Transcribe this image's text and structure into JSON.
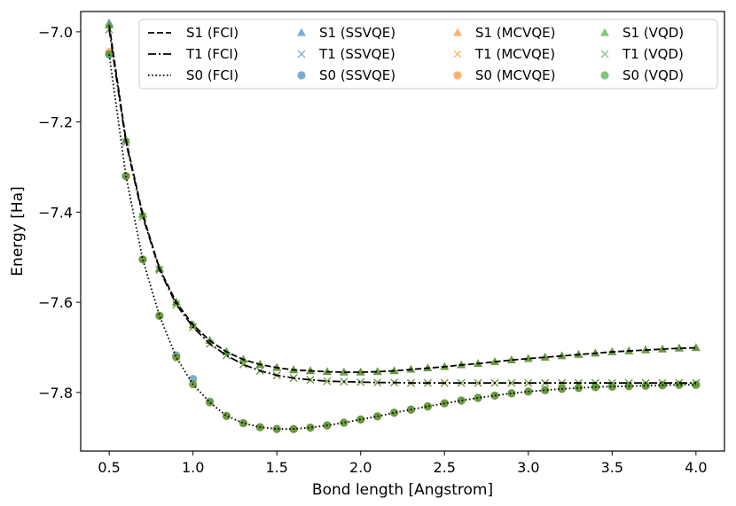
{
  "chart_data": {
    "type": "line",
    "title": "",
    "xlabel": "Bond length [Angstrom]",
    "ylabel": "Energy [Ha]",
    "xlim": [
      0.33,
      4.17
    ],
    "ylim": [
      -7.93,
      -6.955
    ],
    "x_ticks": [
      0.5,
      1.0,
      1.5,
      2.0,
      2.5,
      3.0,
      3.5,
      4.0
    ],
    "x_tick_labels": [
      "0.5",
      "1.0",
      "1.5",
      "2.0",
      "2.5",
      "3.0",
      "3.5",
      "4.0"
    ],
    "y_ticks": [
      -7.0,
      -7.2,
      -7.4,
      -7.6,
      -7.8
    ],
    "y_tick_labels": [
      "−7.0",
      "−7.2",
      "−7.4",
      "−7.6",
      "−7.8"
    ],
    "grid": false,
    "legend_position": "top-right",
    "colors": {
      "ssvqe": "#1f77b4",
      "mcvqe": "#ff7f0e",
      "vqd": "#2ca02c",
      "fci": "#000000"
    },
    "x": [
      0.5,
      0.6,
      0.7,
      0.8,
      0.9,
      1.0,
      1.1,
      1.2,
      1.3,
      1.4,
      1.5,
      1.6,
      1.7,
      1.8,
      1.9,
      2.0,
      2.1,
      2.2,
      2.3,
      2.4,
      2.5,
      2.6,
      2.7,
      2.8,
      2.9,
      3.0,
      3.1,
      3.2,
      3.3,
      3.4,
      3.5,
      3.6,
      3.7,
      3.8,
      3.9,
      4.0
    ],
    "series": [
      {
        "name": "S1 (FCI)",
        "kind": "line",
        "dash": "dashed",
        "color": "#000000",
        "values": [
          -6.985,
          -7.24,
          -7.405,
          -7.525,
          -7.6,
          -7.65,
          -7.685,
          -7.71,
          -7.727,
          -7.738,
          -7.745,
          -7.75,
          -7.752,
          -7.754,
          -7.755,
          -7.755,
          -7.754,
          -7.752,
          -7.749,
          -7.746,
          -7.743,
          -7.739,
          -7.736,
          -7.732,
          -7.728,
          -7.725,
          -7.722,
          -7.719,
          -7.716,
          -7.713,
          -7.71,
          -7.708,
          -7.706,
          -7.704,
          -7.702,
          -7.701
        ]
      },
      {
        "name": "T1 (FCI)",
        "kind": "line",
        "dash": "dashdot",
        "color": "#000000",
        "values": [
          -6.995,
          -7.245,
          -7.41,
          -7.528,
          -7.605,
          -7.655,
          -7.692,
          -7.718,
          -7.738,
          -7.752,
          -7.762,
          -7.768,
          -7.772,
          -7.775,
          -7.776,
          -7.777,
          -7.778,
          -7.778,
          -7.779,
          -7.779,
          -7.779,
          -7.779,
          -7.779,
          -7.779,
          -7.779,
          -7.779,
          -7.779,
          -7.779,
          -7.779,
          -7.779,
          -7.779,
          -7.779,
          -7.779,
          -7.779,
          -7.779,
          -7.779
        ]
      },
      {
        "name": "S0 (FCI)",
        "kind": "line",
        "dash": "dotted",
        "color": "#000000",
        "values": [
          -7.05,
          -7.32,
          -7.505,
          -7.63,
          -7.722,
          -7.782,
          -7.822,
          -7.852,
          -7.868,
          -7.877,
          -7.881,
          -7.881,
          -7.878,
          -7.873,
          -7.867,
          -7.86,
          -7.853,
          -7.845,
          -7.838,
          -7.831,
          -7.824,
          -7.818,
          -7.812,
          -7.807,
          -7.802,
          -7.798,
          -7.795,
          -7.792,
          -7.79,
          -7.788,
          -7.787,
          -7.786,
          -7.785,
          -7.784,
          -7.783,
          -7.783
        ]
      },
      {
        "name": "S1 (SSVQE)",
        "kind": "marker",
        "marker": "triangle",
        "color": "#1f77b4",
        "values": [
          -6.98,
          -7.24,
          -7.405,
          -7.525,
          -7.6,
          -7.65,
          -7.685,
          -7.71,
          -7.727,
          -7.738,
          -7.745,
          -7.75,
          -7.752,
          -7.754,
          -7.755,
          -7.755,
          -7.754,
          -7.752,
          -7.749,
          -7.746,
          -7.743,
          -7.739,
          -7.736,
          -7.732,
          -7.728,
          -7.725,
          -7.722,
          -7.719,
          -7.716,
          -7.713,
          -7.71,
          -7.708,
          -7.706,
          -7.704,
          -7.702,
          -7.701
        ]
      },
      {
        "name": "T1 (SSVQE)",
        "kind": "marker",
        "marker": "x",
        "color": "#1f77b4",
        "values": [
          -6.995,
          -7.245,
          -7.41,
          -7.528,
          -7.605,
          -7.655,
          -7.692,
          -7.718,
          -7.738,
          -7.752,
          -7.762,
          -7.768,
          -7.772,
          -7.775,
          -7.776,
          -7.777,
          -7.778,
          -7.778,
          -7.779,
          -7.779,
          -7.779,
          -7.779,
          -7.779,
          -7.779,
          -7.779,
          -7.779,
          -7.779,
          -7.779,
          -7.779,
          -7.779,
          -7.779,
          -7.779,
          -7.779,
          -7.779,
          -7.779,
          -7.779
        ]
      },
      {
        "name": "S0 (SSVQE)",
        "kind": "marker",
        "marker": "circle",
        "color": "#1f77b4",
        "values": [
          -7.05,
          -7.32,
          -7.505,
          -7.63,
          -7.718,
          -7.77,
          -7.82,
          -7.852,
          -7.868,
          -7.877,
          -7.881,
          -7.881,
          -7.878,
          -7.873,
          -7.867,
          -7.86,
          -7.853,
          -7.845,
          -7.838,
          -7.831,
          -7.824,
          -7.818,
          -7.812,
          -7.807,
          -7.802,
          -7.798,
          -7.795,
          -7.792,
          -7.79,
          -7.788,
          -7.787,
          -7.786,
          -7.785,
          -7.784,
          -7.783,
          -7.783
        ]
      },
      {
        "name": "S1 (MCVQE)",
        "kind": "marker",
        "marker": "triangle",
        "color": "#ff7f0e",
        "values": [
          -6.985,
          -7.24,
          -7.405,
          -7.525,
          -7.6,
          -7.65,
          -7.685,
          -7.71,
          -7.727,
          -7.738,
          -7.745,
          -7.75,
          -7.752,
          -7.754,
          -7.755,
          -7.755,
          -7.754,
          -7.752,
          -7.749,
          -7.746,
          -7.743,
          -7.739,
          -7.736,
          -7.732,
          -7.728,
          -7.725,
          -7.722,
          -7.719,
          -7.716,
          -7.713,
          -7.71,
          -7.708,
          -7.706,
          -7.704,
          -7.702,
          -7.701
        ]
      },
      {
        "name": "T1 (MCVQE)",
        "kind": "marker",
        "marker": "x",
        "color": "#ff7f0e",
        "values": [
          -6.995,
          -7.245,
          -7.41,
          -7.528,
          -7.605,
          -7.655,
          -7.692,
          -7.718,
          -7.738,
          -7.752,
          -7.762,
          -7.768,
          -7.772,
          -7.775,
          -7.776,
          -7.777,
          -7.778,
          -7.778,
          -7.779,
          -7.779,
          -7.779,
          -7.779,
          -7.779,
          -7.779,
          -7.779,
          -7.779,
          -7.779,
          -7.779,
          -7.779,
          -7.779,
          -7.779,
          -7.779,
          -7.779,
          -7.779,
          -7.779,
          -7.779
        ]
      },
      {
        "name": "S0 (MCVQE)",
        "kind": "marker",
        "marker": "circle",
        "color": "#ff7f0e",
        "values": [
          -7.045,
          -7.32,
          -7.505,
          -7.63,
          -7.722,
          -7.782,
          -7.822,
          -7.852,
          -7.868,
          -7.877,
          -7.881,
          -7.881,
          -7.878,
          -7.873,
          -7.867,
          -7.86,
          -7.853,
          -7.845,
          -7.838,
          -7.831,
          -7.824,
          -7.818,
          -7.812,
          -7.807,
          -7.802,
          -7.798,
          -7.795,
          -7.792,
          -7.79,
          -7.788,
          -7.787,
          -7.786,
          -7.785,
          -7.784,
          -7.783,
          -7.783
        ]
      },
      {
        "name": "S1 (VQD)",
        "kind": "marker",
        "marker": "triangle",
        "color": "#2ca02c",
        "values": [
          -6.985,
          -7.24,
          -7.405,
          -7.525,
          -7.6,
          -7.65,
          -7.685,
          -7.71,
          -7.727,
          -7.738,
          -7.745,
          -7.75,
          -7.752,
          -7.754,
          -7.755,
          -7.755,
          -7.754,
          -7.752,
          -7.749,
          -7.746,
          -7.743,
          -7.739,
          -7.736,
          -7.732,
          -7.728,
          -7.725,
          -7.722,
          -7.719,
          -7.716,
          -7.713,
          -7.71,
          -7.708,
          -7.706,
          -7.704,
          -7.702,
          -7.701
        ]
      },
      {
        "name": "T1 (VQD)",
        "kind": "marker",
        "marker": "x",
        "color": "#2ca02c",
        "values": [
          -6.995,
          -7.245,
          -7.41,
          -7.528,
          -7.605,
          -7.655,
          -7.692,
          -7.718,
          -7.738,
          -7.752,
          -7.762,
          -7.768,
          -7.772,
          -7.775,
          -7.776,
          -7.777,
          -7.778,
          -7.778,
          -7.779,
          -7.779,
          -7.779,
          -7.779,
          -7.779,
          -7.779,
          -7.779,
          -7.779,
          -7.779,
          -7.779,
          -7.779,
          -7.779,
          -7.779,
          -7.779,
          -7.779,
          -7.779,
          -7.779,
          -7.779
        ]
      },
      {
        "name": "S0 (VQD)",
        "kind": "marker",
        "marker": "circle",
        "color": "#2ca02c",
        "values": [
          -7.05,
          -7.32,
          -7.505,
          -7.63,
          -7.722,
          -7.782,
          -7.822,
          -7.852,
          -7.868,
          -7.877,
          -7.881,
          -7.881,
          -7.878,
          -7.873,
          -7.867,
          -7.86,
          -7.853,
          -7.845,
          -7.838,
          -7.831,
          -7.824,
          -7.818,
          -7.812,
          -7.807,
          -7.802,
          -7.798,
          -7.795,
          -7.792,
          -7.79,
          -7.788,
          -7.787,
          -7.786,
          -7.785,
          -7.784,
          -7.783,
          -7.783
        ]
      }
    ],
    "legend_layout": [
      [
        "S1 (FCI)",
        "T1 (FCI)",
        "S0 (FCI)"
      ],
      [
        "S1 (SSVQE)",
        "T1 (SSVQE)",
        "S0 (SSVQE)"
      ],
      [
        "S1 (MCVQE)",
        "T1 (MCVQE)",
        "S0 (MCVQE)"
      ],
      [
        "S1 (VQD)",
        "T1 (VQD)",
        "S0 (VQD)"
      ]
    ]
  }
}
